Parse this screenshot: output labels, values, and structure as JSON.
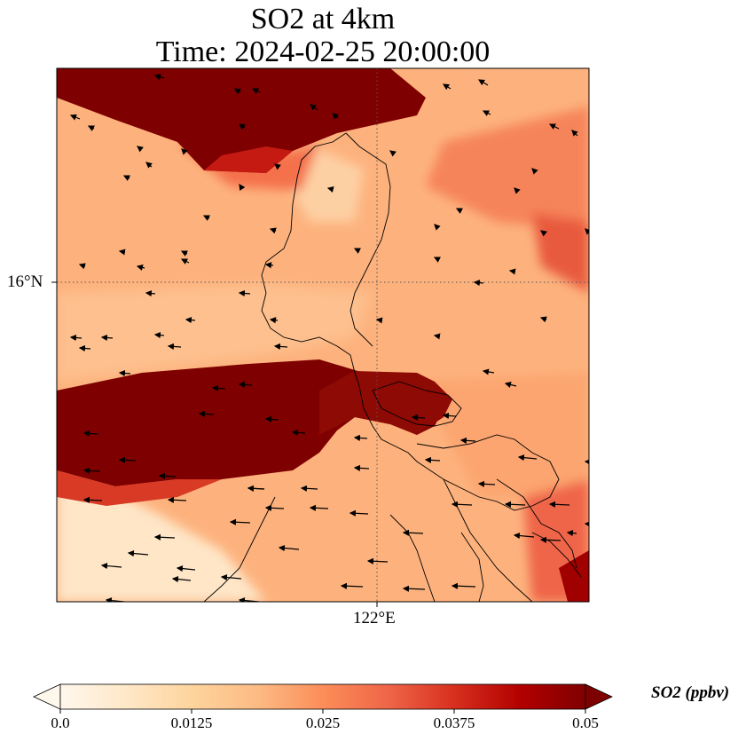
{
  "title": {
    "line1": "SO2 at 4km",
    "line2": "Time: 2024-02-25 20:00:00"
  },
  "axes": {
    "lat_label": "16°N",
    "lon_label": "122°E"
  },
  "colorbar": {
    "label": "SO2 (ppbv)",
    "colormap": "OrRd",
    "min": 0.0,
    "max": 0.05,
    "extend": "both",
    "ticks": [
      "0.0",
      "0.0125",
      "0.025",
      "0.0375",
      "0.05"
    ],
    "colors": [
      "#fff7ec",
      "#fee8c8",
      "#fdd49e",
      "#fdbb84",
      "#fc8d59",
      "#ef6548",
      "#d7301f",
      "#b30000",
      "#7f0000"
    ]
  },
  "map": {
    "gridline_style": "dotted",
    "features": [
      "SO2 concentration field",
      "wind vectors",
      "coastlines"
    ]
  }
}
